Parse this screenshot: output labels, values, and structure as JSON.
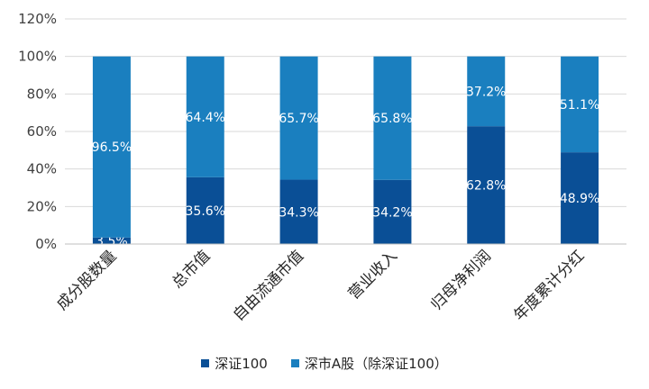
{
  "chart_data": {
    "type": "bar",
    "stacked": true,
    "categories": [
      "成分股数量",
      "总市值",
      "自由流通市值",
      "营业收入",
      "归母净利润",
      "年度累计分红"
    ],
    "series": [
      {
        "name": "深证100",
        "color": "#0a4f96",
        "values": [
          3.5,
          35.6,
          34.3,
          34.2,
          62.8,
          48.9
        ],
        "labels": [
          "3.5%",
          "35.6%",
          "34.3%",
          "34.2%",
          "62.8%",
          "48.9%"
        ]
      },
      {
        "name": "深市A股（除深证100）",
        "color": "#1a7fbf",
        "values": [
          96.5,
          64.4,
          65.7,
          65.8,
          37.2,
          51.1
        ],
        "labels": [
          "96.5%",
          "64.4%",
          "65.7%",
          "65.8%",
          "37.2%",
          "51.1%"
        ]
      }
    ],
    "yticks": [
      "0%",
      "20%",
      "40%",
      "60%",
      "80%",
      "100%",
      "120%"
    ],
    "ylim": [
      0,
      120
    ],
    "grid": true,
    "legend_position": "bottom"
  }
}
